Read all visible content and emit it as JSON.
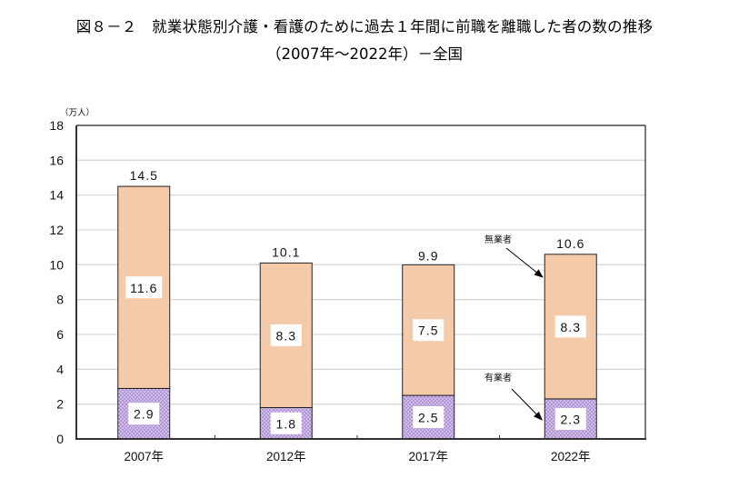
{
  "title": {
    "line1": "図８－２　就業状態別介護・看護のために過去１年間に前職を離職した者の数の推移",
    "line2": "（2007年～2022年）－全国"
  },
  "chart_data": {
    "type": "bar",
    "stacked": true,
    "title": "図８－２　就業状態別介護・看護のために過去１年間に前職を離職した者の数の推移（2007年～2022年）－全国",
    "xlabel": "",
    "ylabel": "（万人）",
    "ylim": [
      0,
      18
    ],
    "yticks": [
      0,
      2,
      4,
      6,
      8,
      10,
      12,
      14,
      16,
      18
    ],
    "grid": true,
    "categories": [
      "2007年",
      "2012年",
      "2017年",
      "2022年"
    ],
    "series": [
      {
        "name": "有業者",
        "values": [
          2.9,
          1.8,
          2.5,
          2.3
        ],
        "labels": [
          "2.9",
          "1.8",
          "2.5",
          "2.3"
        ],
        "color": "#b49ad8",
        "pattern": "dotted"
      },
      {
        "name": "無業者",
        "values": [
          11.6,
          8.3,
          7.5,
          8.3
        ],
        "labels": [
          "11.6",
          "8.3",
          "7.5",
          "8.3"
        ],
        "color": "#f5caa9"
      }
    ],
    "totals": [
      14.5,
      10.1,
      9.9,
      10.6
    ],
    "total_labels": [
      "14.5",
      "10.1",
      "9.9",
      "10.6"
    ],
    "annotations": [
      {
        "text": "無業者",
        "target_series": "無業者",
        "target_category": "2022年"
      },
      {
        "text": "有業者",
        "target_series": "有業者",
        "target_category": "2022年"
      }
    ]
  }
}
